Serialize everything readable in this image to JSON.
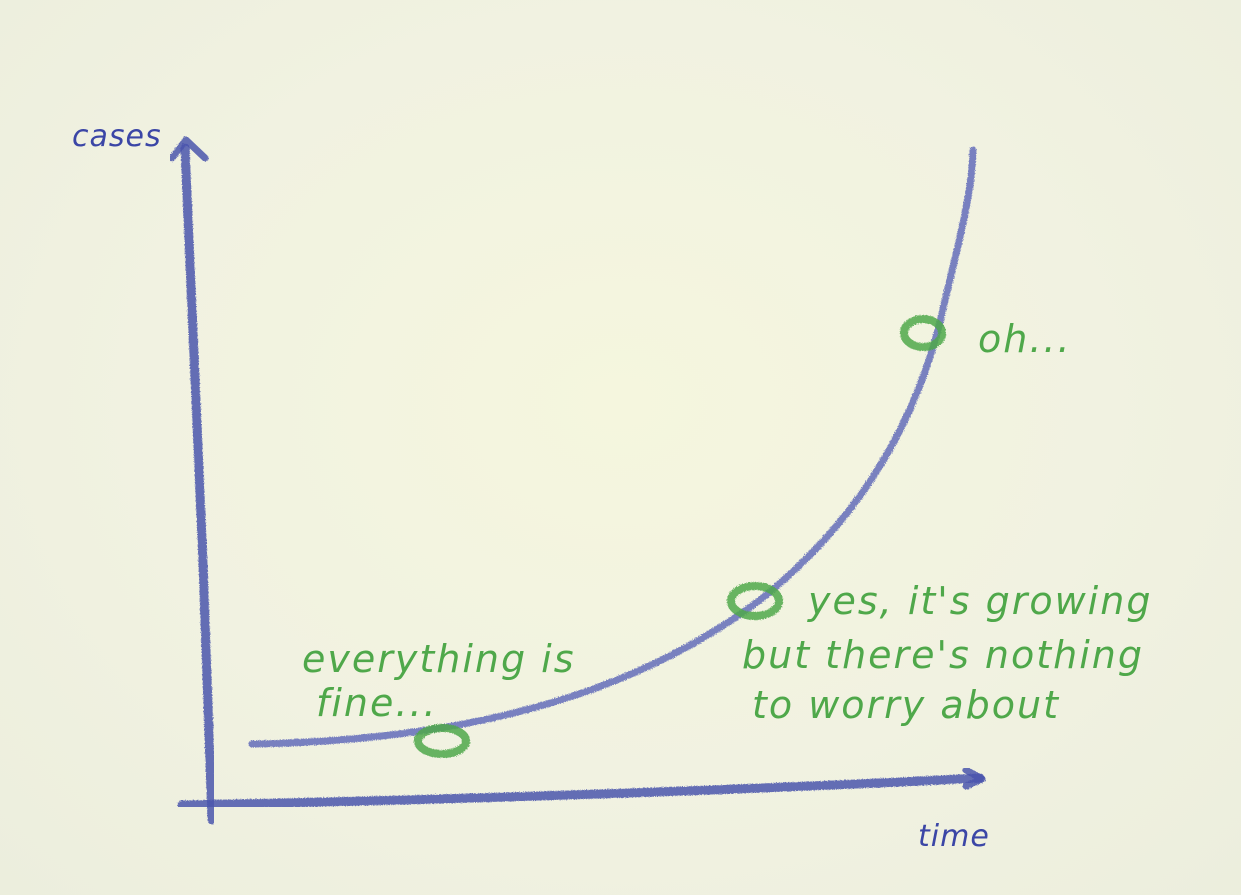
{
  "diagram": {
    "y_axis_label": "cases",
    "x_axis_label": "time",
    "colors": {
      "axes": "#4a55ad",
      "curve": "#5a64b8",
      "annotations": "#4fa84a",
      "background": "#f2f3df"
    },
    "annotations": {
      "early": {
        "line1": "everything is",
        "line2": "fine..."
      },
      "middle": {
        "line1": "yes, it's growing",
        "line2": "but there's nothing",
        "line3": "to worry about"
      },
      "late": {
        "line1": "oh..."
      }
    }
  }
}
